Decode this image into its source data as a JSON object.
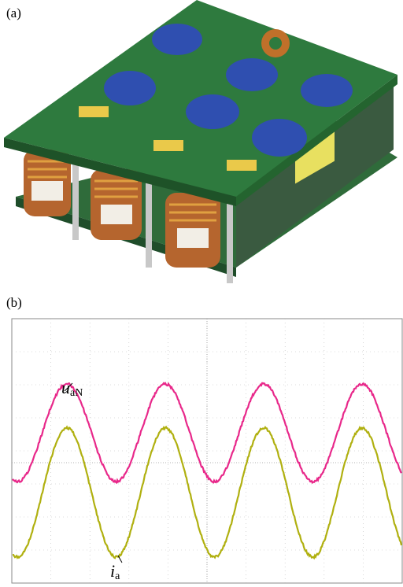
{
  "panel_a": {
    "label": "(a)"
  },
  "panel_b": {
    "label": "(b)",
    "voltage_label": {
      "symbol": "u",
      "subscript": "aN"
    },
    "current_label": {
      "symbol": "i",
      "subscript": "a"
    }
  }
}
